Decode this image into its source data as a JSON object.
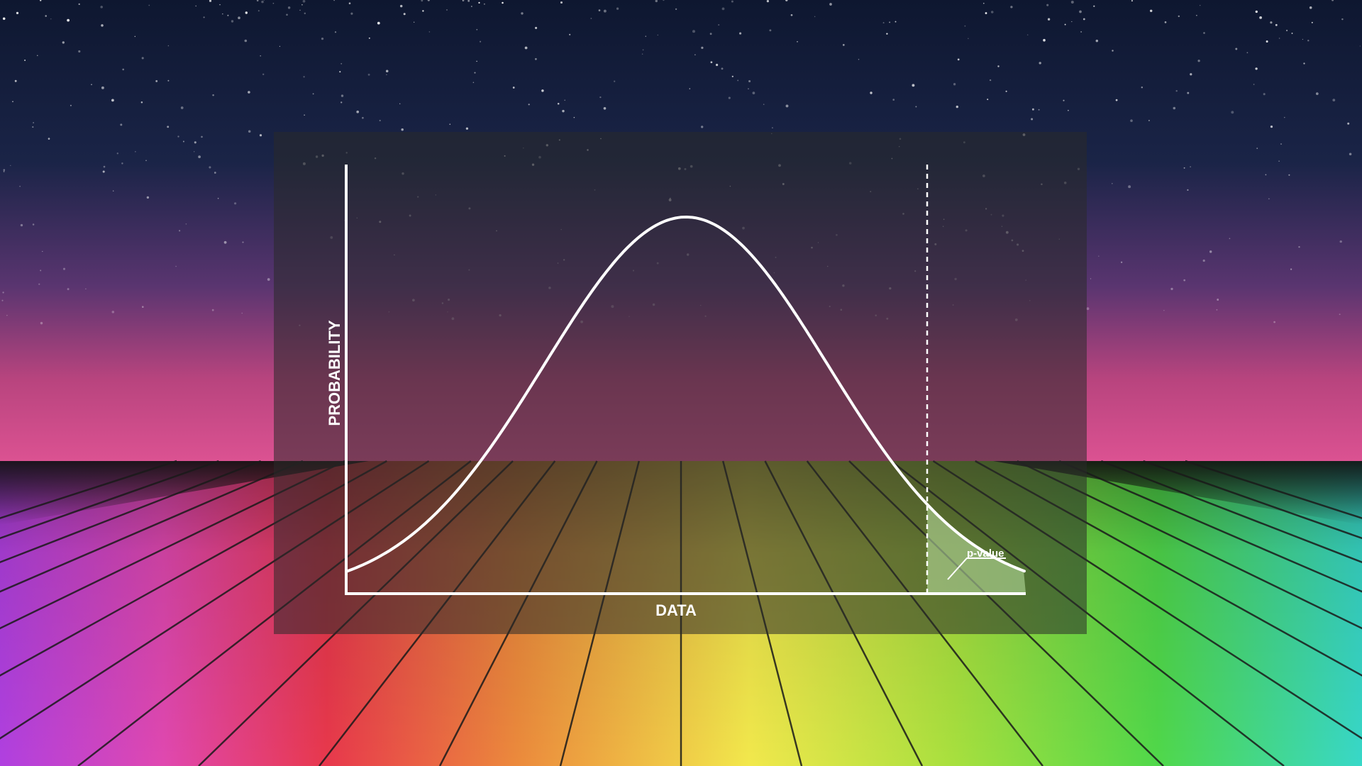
{
  "diagram": {
    "x_axis_label": "DATA",
    "y_axis_label": "PROBABILITY",
    "annotation_label": "p-value",
    "curve": "bell-shaped probability distribution",
    "threshold": "dashed vertical line in the right tail",
    "shaded_region": "tail area beyond the threshold"
  },
  "colors": {
    "sky_top": "#111a33",
    "sky_mid": "#2a2f5c",
    "horizon_pink": "#d8508c",
    "floor_left": "#e63c55",
    "floor_center": "#f0e64a",
    "floor_right": "#4ad84a",
    "floor_edge_left": "#a040e8",
    "floor_edge_right": "#30d8e0",
    "panel": "#2a2a2a",
    "curve": "#ffffff",
    "tail_fill": "#c8f0b0"
  }
}
